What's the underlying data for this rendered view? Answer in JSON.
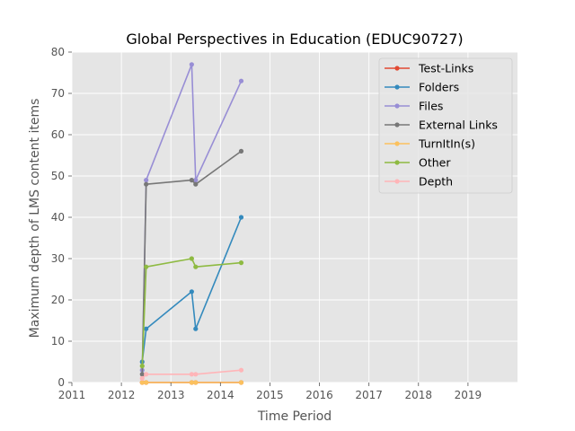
{
  "chart_data": {
    "type": "line",
    "title": "Global Perspectives in Education (EDUC90727)",
    "xlabel": "Time Period",
    "ylabel": "Maximum depth of LMS content items",
    "xlim": [
      2011,
      2020
    ],
    "ylim": [
      0,
      80
    ],
    "xticks": [
      "2011",
      "2012",
      "2013",
      "2014",
      "2015",
      "2016",
      "2017",
      "2018",
      "2019"
    ],
    "yticks": [
      "0",
      "10",
      "20",
      "30",
      "40",
      "50",
      "60",
      "70",
      "80"
    ],
    "grid": true,
    "legend_position": "top-right",
    "x": [
      2012.42,
      2012.5,
      2013.42,
      2013.5,
      2014.42
    ],
    "series": [
      {
        "name": "Test-Links",
        "color": "#E24A33",
        "values": [
          0,
          0,
          0,
          0,
          0
        ]
      },
      {
        "name": "Folders",
        "color": "#348ABD",
        "values": [
          5,
          13,
          22,
          13,
          40
        ]
      },
      {
        "name": "Files",
        "color": "#988ED5",
        "values": [
          3,
          49,
          77,
          49,
          73
        ]
      },
      {
        "name": "External Links",
        "color": "#777777",
        "values": [
          2,
          48,
          49,
          48,
          56
        ]
      },
      {
        "name": "TurnItIn(s)",
        "color": "#FBC15E",
        "values": [
          0,
          0,
          0,
          0,
          0
        ]
      },
      {
        "name": "Other",
        "color": "#8EBA42",
        "values": [
          4,
          28,
          30,
          28,
          29
        ]
      },
      {
        "name": "Depth",
        "color": "#FFB5B8",
        "values": [
          1,
          2,
          2,
          2,
          3
        ]
      }
    ]
  }
}
